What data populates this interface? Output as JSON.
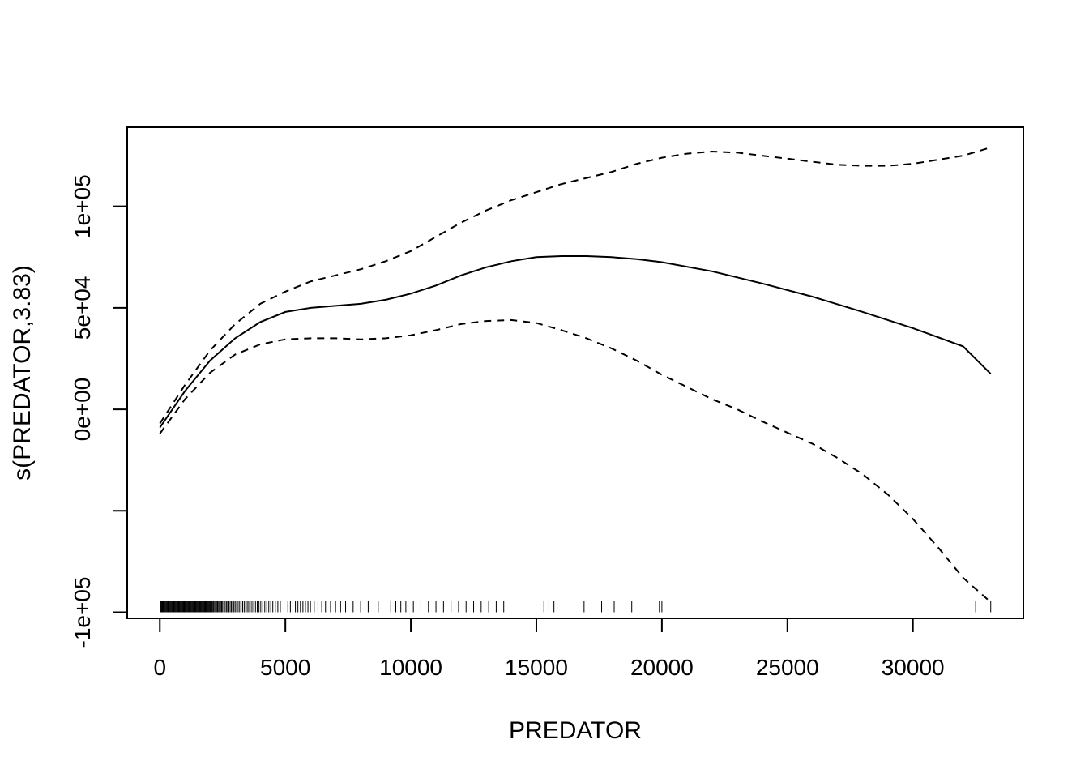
{
  "chart_data": {
    "type": "line",
    "title": "",
    "xlabel": "PREDATOR",
    "ylabel": "s(PREDATOR,3.83)",
    "xlim": [
      -1300,
      34400
    ],
    "ylim": [
      -103000,
      139000
    ],
    "x_ticks": [
      0,
      5000,
      10000,
      15000,
      20000,
      25000,
      30000
    ],
    "x_tick_labels": [
      "0",
      "5000",
      "10000",
      "15000",
      "20000",
      "25000",
      "30000"
    ],
    "y_ticks": [
      -100000,
      -50000,
      0,
      50000,
      100000
    ],
    "y_tick_labels": [
      "-1e+05",
      "",
      "0e+00",
      "5e+04",
      "1e+05"
    ],
    "grid": false,
    "legend": "none",
    "series": [
      {
        "style": "solid",
        "x": [
          0,
          1000,
          2000,
          3000,
          4000,
          5000,
          6000,
          7000,
          8000,
          9000,
          10000,
          11000,
          12000,
          13000,
          14000,
          15000,
          16000,
          17000,
          18000,
          19000,
          20000,
          22000,
          24000,
          26000,
          28000,
          30000,
          32000,
          33100
        ],
        "y": [
          -9000,
          9000,
          24000,
          35000,
          43000,
          48000,
          50000,
          51000,
          52000,
          54000,
          57000,
          61000,
          66000,
          70000,
          73000,
          75000,
          75500,
          75500,
          75000,
          74000,
          72500,
          68000,
          62000,
          55500,
          48000,
          40000,
          31000,
          17500
        ]
      },
      {
        "style": "dashed",
        "x": [
          0,
          1000,
          2000,
          3000,
          4000,
          5000,
          6000,
          7000,
          8000,
          9000,
          10000,
          11000,
          12000,
          13000,
          14000,
          15000,
          16000,
          17000,
          18000,
          19000,
          20000,
          21000,
          22000,
          23000,
          24000,
          25000,
          26000,
          27000,
          28000,
          29000,
          30000,
          31000,
          32000,
          33100
        ],
        "y": [
          -7000,
          12000,
          29000,
          42000,
          52000,
          58000,
          63000,
          66000,
          69000,
          73000,
          78000,
          85000,
          92000,
          98000,
          103000,
          107000,
          111000,
          114000,
          117000,
          121000,
          124000,
          126000,
          127000,
          126500,
          125000,
          123500,
          122000,
          120500,
          120000,
          120000,
          121000,
          123000,
          125000,
          129000
        ]
      },
      {
        "style": "dashed",
        "x": [
          0,
          1000,
          2000,
          3000,
          4000,
          5000,
          6000,
          7000,
          8000,
          9000,
          10000,
          11000,
          12000,
          13000,
          14000,
          15000,
          16000,
          17000,
          18000,
          19000,
          20000,
          21000,
          22000,
          23000,
          24000,
          25000,
          26000,
          27000,
          28000,
          29000,
          30000,
          31000,
          32000,
          33100
        ],
        "y": [
          -12000,
          5000,
          18000,
          27000,
          32000,
          34500,
          35000,
          35000,
          34500,
          35000,
          36500,
          39000,
          42000,
          43500,
          44000,
          42500,
          39000,
          35000,
          30000,
          24000,
          17000,
          11000,
          5000,
          0,
          -6000,
          -11500,
          -17000,
          -24000,
          -32000,
          -42000,
          -54000,
          -68000,
          -83000,
          -95000
        ]
      }
    ],
    "rug": [
      20,
      45,
      70,
      95,
      120,
      150,
      180,
      210,
      240,
      270,
      300,
      330,
      360,
      390,
      420,
      450,
      480,
      510,
      540,
      570,
      600,
      630,
      660,
      690,
      720,
      750,
      780,
      810,
      840,
      870,
      900,
      930,
      960,
      990,
      1020,
      1050,
      1080,
      1110,
      1140,
      1170,
      1200,
      1230,
      1260,
      1290,
      1320,
      1350,
      1380,
      1410,
      1440,
      1470,
      1500,
      1530,
      1560,
      1590,
      1620,
      1650,
      1680,
      1710,
      1740,
      1770,
      1800,
      1830,
      1860,
      1890,
      1920,
      1950,
      1980,
      2010,
      2040,
      2070,
      2100,
      2140,
      2180,
      2220,
      2260,
      2300,
      2340,
      2380,
      2420,
      2460,
      2500,
      2550,
      2600,
      2650,
      2700,
      2750,
      2800,
      2850,
      2900,
      2950,
      3000,
      3060,
      3120,
      3180,
      3240,
      3300,
      3360,
      3420,
      3480,
      3540,
      3600,
      3670,
      3740,
      3810,
      3880,
      3950,
      4020,
      4100,
      4180,
      4260,
      4340,
      4420,
      4500,
      4600,
      4700,
      4800,
      5100,
      5200,
      5300,
      5400,
      5500,
      5600,
      5700,
      5800,
      5900,
      6000,
      6150,
      6300,
      6450,
      6600,
      6800,
      7000,
      7200,
      7400,
      7700,
      8000,
      8300,
      8700,
      9200,
      9400,
      9600,
      9800,
      10100,
      10400,
      10700,
      11000,
      11300,
      11600,
      11900,
      12200,
      12500,
      12800,
      13100,
      13400,
      13700,
      15300,
      15500,
      15700,
      16900,
      17600,
      18100,
      18800,
      19900,
      20000,
      32500,
      33100
    ]
  }
}
